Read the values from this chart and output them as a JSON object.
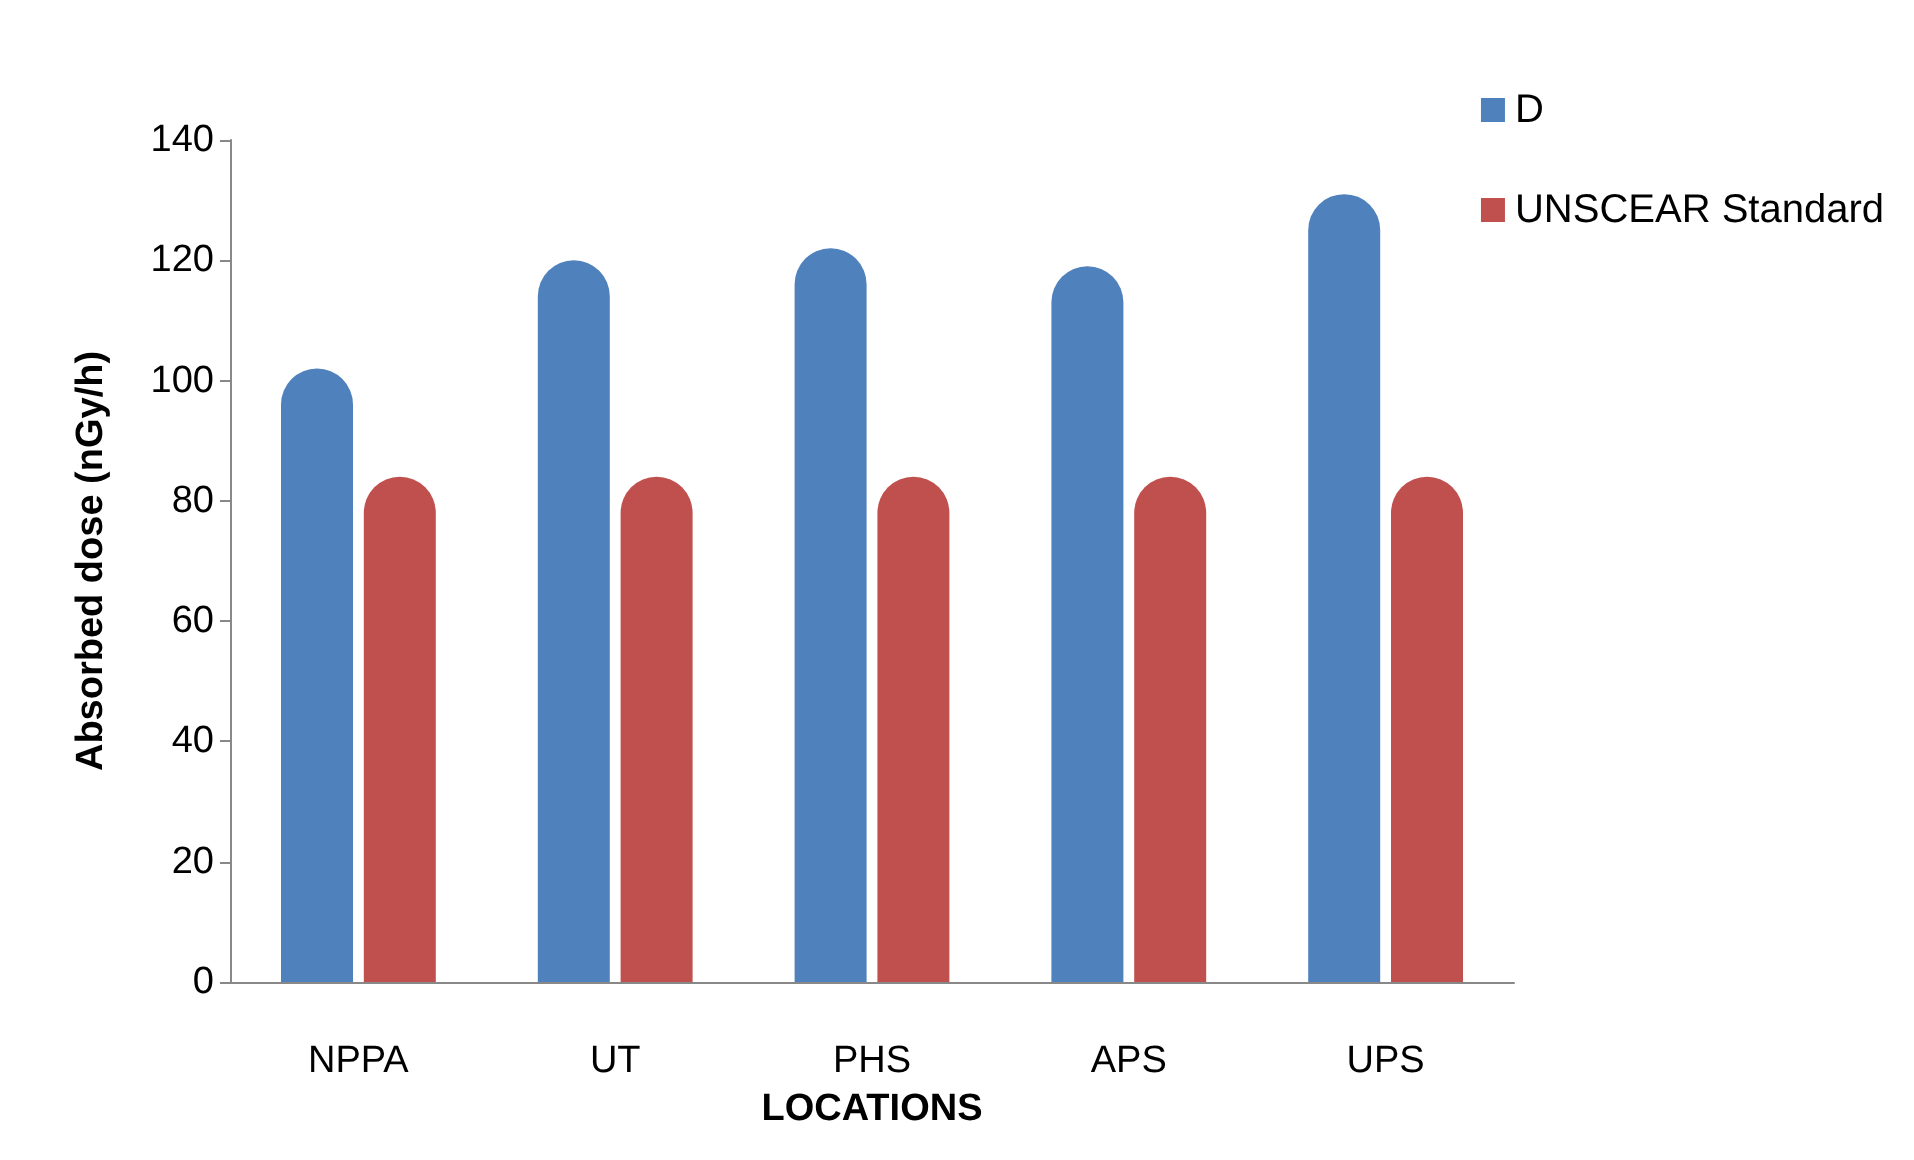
{
  "chart_data": {
    "type": "bar",
    "xlabel": "LOCATIONS",
    "ylabel": "Absorbed dose (nGy/h)",
    "categories": [
      "NPPA",
      "UT",
      "PHS",
      "APS",
      "UPS"
    ],
    "series": [
      {
        "name": "D",
        "color": "#4f81bd",
        "values": [
          102,
          120,
          122,
          119,
          131
        ]
      },
      {
        "name": "UNSCEAR Standard",
        "color": "#c0504d",
        "values": [
          84,
          84,
          84,
          84,
          84
        ]
      }
    ],
    "ylim": [
      0,
      140
    ],
    "yticks": [
      0,
      20,
      40,
      60,
      80,
      100,
      120,
      140
    ],
    "grid": false,
    "legend": "top right"
  }
}
